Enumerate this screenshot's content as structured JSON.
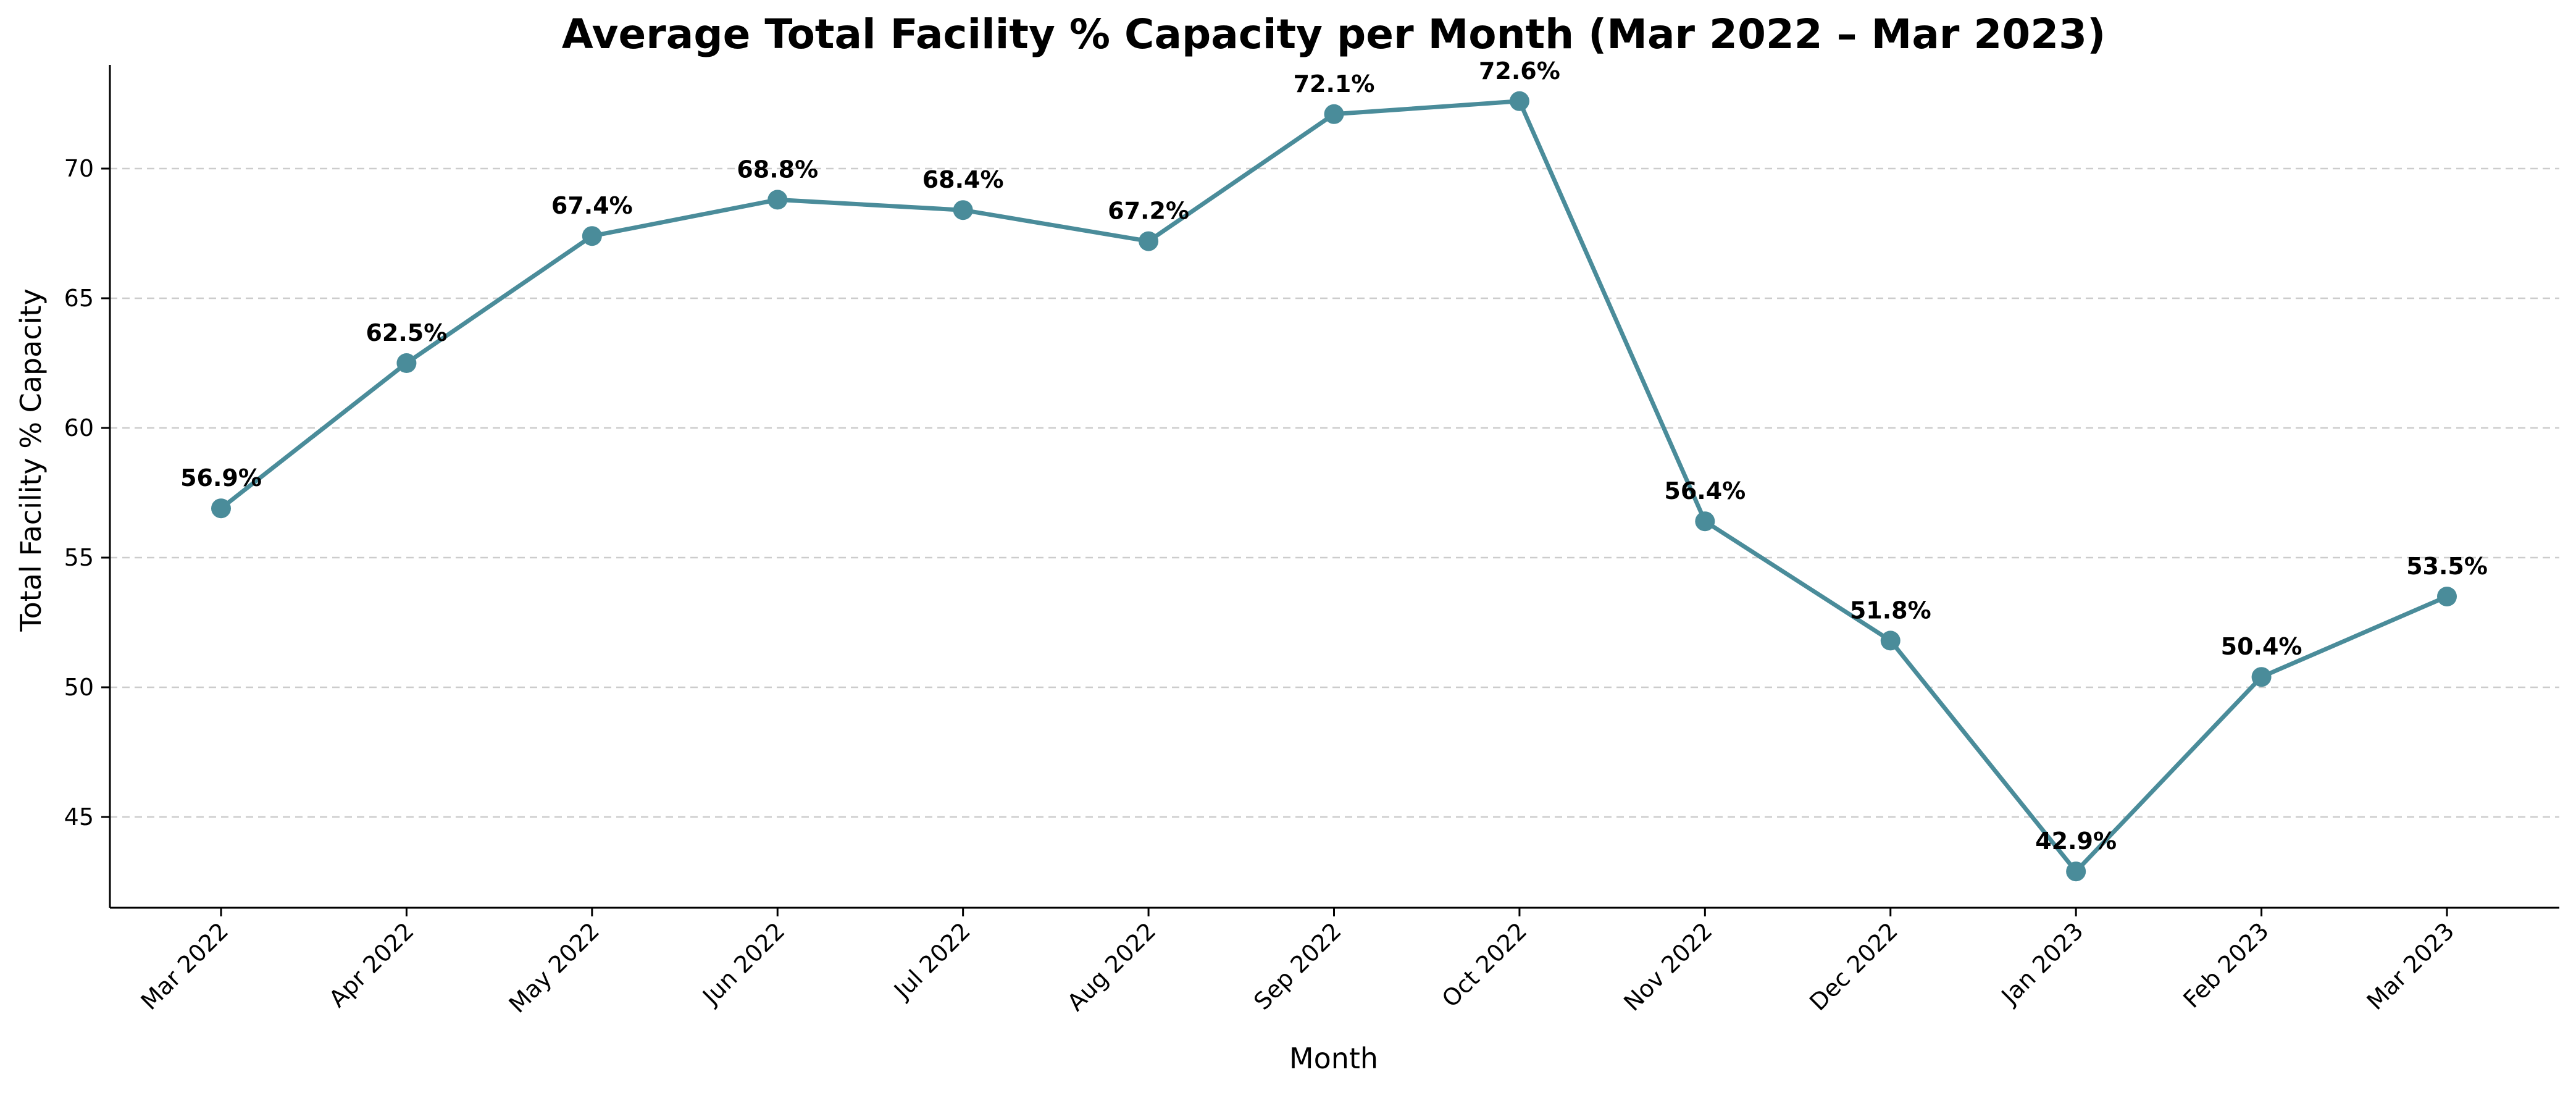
{
  "chart_data": {
    "type": "line",
    "title": "Average Total Facility % Capacity per Month (Mar 2022 – Mar 2023)",
    "xlabel": "Month",
    "ylabel": "Total Facility % Capacity",
    "categories": [
      "Mar 2022",
      "Apr 2022",
      "May 2022",
      "Jun 2022",
      "Jul 2022",
      "Aug 2022",
      "Sep 2022",
      "Oct 2022",
      "Nov 2022",
      "Dec 2022",
      "Jan 2023",
      "Feb 2023",
      "Mar 2023"
    ],
    "series": [
      {
        "values": [
          56.9,
          62.5,
          67.4,
          68.8,
          68.4,
          67.2,
          72.1,
          72.6,
          56.4,
          51.8,
          42.9,
          50.4,
          53.5
        ],
        "data_labels": [
          "56.9%",
          "62.5%",
          "67.4%",
          "68.8%",
          "68.4%",
          "67.2%",
          "72.1%",
          "72.6%",
          "56.4%",
          "51.8%",
          "42.9%",
          "50.4%",
          "53.5%"
        ]
      }
    ],
    "ylim": [
      41.5,
      74.0
    ],
    "yticks": [
      45,
      50,
      55,
      60,
      65,
      70
    ],
    "grid": "horizontal dashed",
    "line_color": "#4a8c9a",
    "marker": "circle"
  }
}
